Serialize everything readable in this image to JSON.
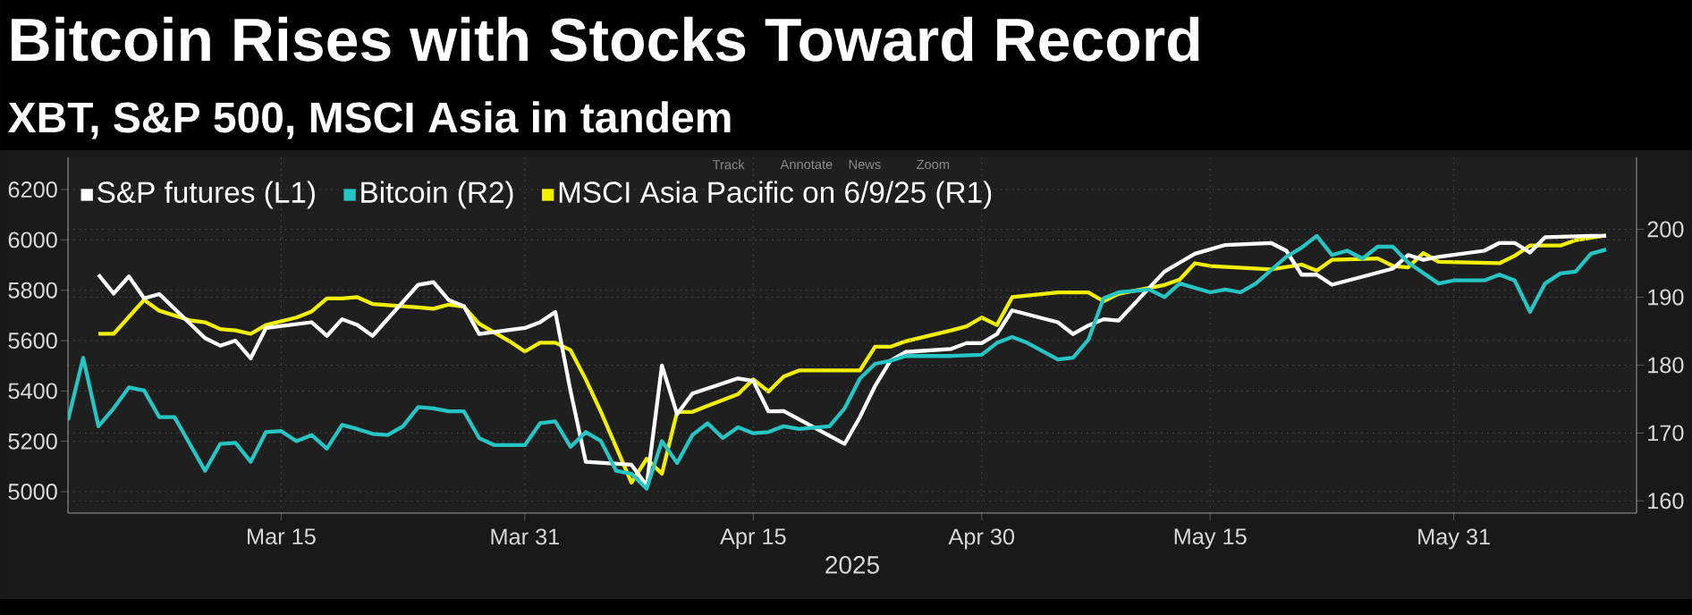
{
  "chart_data": {
    "type": "line",
    "title": "Bitcoin Rises with Stocks Toward Record",
    "subtitle": "XBT, S&P 500, MSCI Asia in tandem",
    "xlabel": "2025",
    "xlim": [
      "2025-03-01",
      "2025-06-12"
    ],
    "xticks": [
      {
        "value": "2025-03-15",
        "label": "Mar 15"
      },
      {
        "value": "2025-03-31",
        "label": "Mar 31"
      },
      {
        "value": "2025-04-15",
        "label": "Apr 15"
      },
      {
        "value": "2025-04-30",
        "label": "Apr 30"
      },
      {
        "value": "2025-05-15",
        "label": "May 15"
      },
      {
        "value": "2025-05-31",
        "label": "May 31"
      }
    ],
    "ylim": [
      4915,
      6328
    ],
    "yticks": [
      5000,
      5200,
      5400,
      5600,
      5800,
      6000,
      6200
    ],
    "y2lim": [
      158.2,
      210.6
    ],
    "y2ticks": [
      160,
      170,
      180,
      190,
      200
    ],
    "grid": true,
    "legend": "top left",
    "line_style": "solid",
    "annotations": [
      "Track",
      "Annotate",
      "News",
      "Zoom"
    ],
    "series": [
      {
        "name": "S&P futures (L1)",
        "color": "#ffffff",
        "axis": "y",
        "x": [
          "2025-03-03",
          "2025-03-04",
          "2025-03-05",
          "2025-03-06",
          "2025-03-07",
          "2025-03-10",
          "2025-03-11",
          "2025-03-12",
          "2025-03-13",
          "2025-03-14",
          "2025-03-17",
          "2025-03-18",
          "2025-03-19",
          "2025-03-20",
          "2025-03-21",
          "2025-03-24",
          "2025-03-25",
          "2025-03-26",
          "2025-03-27",
          "2025-03-28",
          "2025-03-31",
          "2025-04-01",
          "2025-04-02",
          "2025-04-03",
          "2025-04-04",
          "2025-04-07",
          "2025-04-08",
          "2025-04-09",
          "2025-04-10",
          "2025-04-11",
          "2025-04-14",
          "2025-04-15",
          "2025-04-16",
          "2025-04-17",
          "2025-04-21",
          "2025-04-22",
          "2025-04-23",
          "2025-04-24",
          "2025-04-25",
          "2025-04-28",
          "2025-04-29",
          "2025-04-30",
          "2025-05-01",
          "2025-05-02",
          "2025-05-05",
          "2025-05-06",
          "2025-05-07",
          "2025-05-08",
          "2025-05-09",
          "2025-05-12",
          "2025-05-13",
          "2025-05-14",
          "2025-05-16",
          "2025-05-19",
          "2025-05-20",
          "2025-05-21",
          "2025-05-22",
          "2025-05-23",
          "2025-05-27",
          "2025-05-28",
          "2025-05-29",
          "2025-05-30",
          "2025-06-02",
          "2025-06-03",
          "2025-06-04",
          "2025-06-05",
          "2025-06-06",
          "2025-06-09",
          "2025-06-10"
        ],
        "values": [
          5862,
          5787,
          5855,
          5768,
          5785,
          5610,
          5580,
          5600,
          5530,
          5650,
          5673,
          5619,
          5685,
          5662,
          5619,
          5822,
          5832,
          5761,
          5737,
          5626,
          5650,
          5673,
          5714,
          5400,
          5119,
          5107,
          5024,
          5501,
          5308,
          5390,
          5450,
          5440,
          5319,
          5320,
          5190,
          5296,
          5420,
          5520,
          5555,
          5567,
          5590,
          5590,
          5626,
          5720,
          5673,
          5626,
          5660,
          5685,
          5680,
          5874,
          5910,
          5945,
          5980,
          5988,
          5957,
          5862,
          5862,
          5822,
          5886,
          5940,
          5921,
          5933,
          5957,
          5988,
          5988,
          5950,
          6011,
          6016,
          6016
        ]
      },
      {
        "name": "Bitcoin  (R2)",
        "color": "#27c4c4",
        "axis": "y",
        "x": [
          "2025-03-01",
          "2025-03-02",
          "2025-03-03",
          "2025-03-04",
          "2025-03-05",
          "2025-03-06",
          "2025-03-07",
          "2025-03-08",
          "2025-03-10",
          "2025-03-11",
          "2025-03-12",
          "2025-03-13",
          "2025-03-14",
          "2025-03-15",
          "2025-03-16",
          "2025-03-17",
          "2025-03-18",
          "2025-03-19",
          "2025-03-20",
          "2025-03-21",
          "2025-03-22",
          "2025-03-23",
          "2025-03-24",
          "2025-03-25",
          "2025-03-26",
          "2025-03-27",
          "2025-03-28",
          "2025-03-29",
          "2025-03-31",
          "2025-04-01",
          "2025-04-02",
          "2025-04-03",
          "2025-04-04",
          "2025-04-05",
          "2025-04-06",
          "2025-04-07",
          "2025-04-08",
          "2025-04-09",
          "2025-04-10",
          "2025-04-11",
          "2025-04-12",
          "2025-04-13",
          "2025-04-14",
          "2025-04-15",
          "2025-04-16",
          "2025-04-17",
          "2025-04-18",
          "2025-04-20",
          "2025-04-21",
          "2025-04-22",
          "2025-04-23",
          "2025-04-24",
          "2025-04-25",
          "2025-04-28",
          "2025-04-30",
          "2025-05-01",
          "2025-05-02",
          "2025-05-03",
          "2025-05-05",
          "2025-05-06",
          "2025-05-07",
          "2025-05-08",
          "2025-05-09",
          "2025-05-11",
          "2025-05-12",
          "2025-05-13",
          "2025-05-15",
          "2025-05-16",
          "2025-05-17",
          "2025-05-18",
          "2025-05-20",
          "2025-05-21",
          "2025-05-22",
          "2025-05-23",
          "2025-05-24",
          "2025-05-25",
          "2025-05-26",
          "2025-05-27",
          "2025-05-28",
          "2025-05-30",
          "2025-05-31",
          "2025-06-02",
          "2025-06-03",
          "2025-06-04",
          "2025-06-05",
          "2025-06-06",
          "2025-06-07",
          "2025-06-08",
          "2025-06-09",
          "2025-06-10"
        ],
        "values": [
          5284,
          5532,
          5260,
          5331,
          5414,
          5402,
          5296,
          5296,
          5083,
          5190,
          5194,
          5119,
          5237,
          5241,
          5201,
          5225,
          5171,
          5265,
          5249,
          5230,
          5225,
          5260,
          5336,
          5331,
          5319,
          5319,
          5213,
          5185,
          5185,
          5272,
          5279,
          5178,
          5237,
          5201,
          5083,
          5071,
          5012,
          5201,
          5114,
          5225,
          5272,
          5213,
          5256,
          5232,
          5237,
          5260,
          5249,
          5260,
          5331,
          5449,
          5508,
          5520,
          5539,
          5539,
          5544,
          5591,
          5614,
          5591,
          5525,
          5532,
          5603,
          5768,
          5792,
          5803,
          5773,
          5827,
          5792,
          5803,
          5792,
          5827,
          5933,
          5969,
          6016,
          5940,
          5957,
          5926,
          5973,
          5973,
          5910,
          5827,
          5839,
          5839,
          5862,
          5839,
          5714,
          5827,
          5867,
          5874,
          5945,
          5962
        ]
      },
      {
        "name": "MSCI Asia Pacific  on 6/9/25 (R1)",
        "color": "#f0f000",
        "axis": "y2",
        "x": [
          "2025-03-03",
          "2025-03-04",
          "2025-03-06",
          "2025-03-07",
          "2025-03-09",
          "2025-03-10",
          "2025-03-11",
          "2025-03-12",
          "2025-03-13",
          "2025-03-14",
          "2025-03-16",
          "2025-03-17",
          "2025-03-18",
          "2025-03-19",
          "2025-03-20",
          "2025-03-21",
          "2025-03-24",
          "2025-03-25",
          "2025-03-26",
          "2025-03-27",
          "2025-03-28",
          "2025-03-30",
          "2025-03-31",
          "2025-04-01",
          "2025-04-02",
          "2025-04-03",
          "2025-04-04",
          "2025-04-05",
          "2025-04-07",
          "2025-04-08",
          "2025-04-09",
          "2025-04-10",
          "2025-04-11",
          "2025-04-12",
          "2025-04-14",
          "2025-04-15",
          "2025-04-16",
          "2025-04-17",
          "2025-04-18",
          "2025-04-22",
          "2025-04-23",
          "2025-04-24",
          "2025-04-25",
          "2025-04-28",
          "2025-04-29",
          "2025-04-30",
          "2025-05-01",
          "2025-05-02",
          "2025-05-05",
          "2025-05-07",
          "2025-05-08",
          "2025-05-09",
          "2025-05-12",
          "2025-05-13",
          "2025-05-14",
          "2025-05-15",
          "2025-05-19",
          "2025-05-21",
          "2025-05-22",
          "2025-05-23",
          "2025-05-26",
          "2025-05-27",
          "2025-05-28",
          "2025-05-29",
          "2025-05-30",
          "2025-06-03",
          "2025-06-04",
          "2025-06-05",
          "2025-06-07",
          "2025-06-08",
          "2025-06-10"
        ],
        "values": [
          184.6,
          184.6,
          189.6,
          188.0,
          186.6,
          186.3,
          185.3,
          185.1,
          184.6,
          185.9,
          187.0,
          187.9,
          189.8,
          189.8,
          190.0,
          189.0,
          188.5,
          188.3,
          188.9,
          188.6,
          186.1,
          183.5,
          182.0,
          183.3,
          183.3,
          182.2,
          177.9,
          173.1,
          162.7,
          166.2,
          164.0,
          173.1,
          173.1,
          174.0,
          175.7,
          177.9,
          176.1,
          178.3,
          179.2,
          179.2,
          182.7,
          182.7,
          183.5,
          185.1,
          185.7,
          187.0,
          185.9,
          190.0,
          190.7,
          190.7,
          189.4,
          190.5,
          191.8,
          192.6,
          195.0,
          194.6,
          194.1,
          194.8,
          193.9,
          195.5,
          195.7,
          194.6,
          194.4,
          196.5,
          195.2,
          195.0,
          196.1,
          197.6,
          197.6,
          198.4,
          199.1
        ]
      }
    ]
  }
}
